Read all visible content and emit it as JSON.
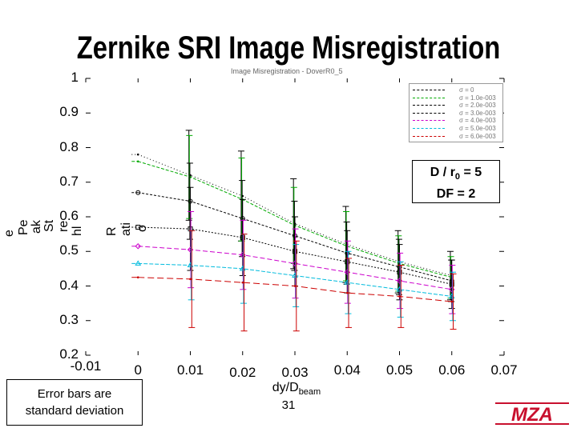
{
  "slide": {
    "title": "Zernike SRI Image Misregistration",
    "page_number": "31",
    "note_line1": "Error bars are",
    "note_line2": "standard deviation",
    "logo_text": "MZA",
    "colors": {
      "background": "#ffffff",
      "text": "#000000",
      "logo": "#c8102e"
    }
  },
  "chart_data": {
    "type": "line",
    "title": "",
    "subtitle": "Image Misregistration - DoverR0_5",
    "xlabel": "dy/D",
    "xlabel_sub": "beam",
    "ylabel_fragments": [
      "e",
      "Pe",
      "ak",
      "St",
      "re",
      "hl",
      "R",
      "ati",
      "o"
    ],
    "xlim": [
      -0.01,
      0.07
    ],
    "ylim": [
      0.2,
      1.0
    ],
    "x_ticks": [
      "-0.01",
      "0",
      "0.01",
      "0.02",
      "0.03",
      "0.04",
      "0.05",
      "0.06",
      "0.07"
    ],
    "y_ticks": [
      "0.2",
      "0.3",
      "0.4",
      "0.5",
      "0.6",
      "0.7",
      "0.8",
      "0.9",
      "1"
    ],
    "annotation": {
      "line1_pre": "D / r",
      "line1_sub": "0",
      "line1_post": " = 5",
      "line2": "DF = 2"
    },
    "legend_position": "top-right",
    "x": [
      0,
      0.01,
      0.02,
      0.03,
      0.04,
      0.05,
      0.06
    ],
    "series": [
      {
        "name": "σ = 0",
        "color": "#000000",
        "values": [
          0.78,
          0.72,
          0.66,
          0.58,
          0.52,
          0.47,
          0.43
        ],
        "err": [
          0.0,
          0.13,
          0.13,
          0.13,
          0.11,
          0.09,
          0.07
        ]
      },
      {
        "name": "σ = 1.0e-003",
        "color": "#00aa00",
        "values": [
          0.76,
          0.715,
          0.65,
          0.575,
          0.515,
          0.465,
          0.425
        ],
        "err": [
          0.0,
          0.12,
          0.12,
          0.11,
          0.1,
          0.08,
          0.06
        ]
      },
      {
        "name": "σ = 2.0e-003",
        "color": "#000000",
        "values": [
          0.67,
          0.645,
          0.595,
          0.545,
          0.495,
          0.455,
          0.415
        ],
        "err": [
          0.0,
          0.11,
          0.11,
          0.1,
          0.09,
          0.08,
          0.06
        ]
      },
      {
        "name": "σ = 3.0e-003",
        "color": "#000000",
        "values": [
          0.57,
          0.565,
          0.54,
          0.5,
          0.47,
          0.44,
          0.405
        ],
        "err": [
          0.0,
          0.12,
          0.11,
          0.1,
          0.09,
          0.08,
          0.07
        ]
      },
      {
        "name": "σ = 4.0e-003",
        "color": "#cc00cc",
        "values": [
          0.515,
          0.505,
          0.49,
          0.465,
          0.44,
          0.415,
          0.39
        ],
        "err": [
          0.0,
          0.11,
          0.1,
          0.1,
          0.09,
          0.08,
          0.07
        ]
      },
      {
        "name": "σ = 5.0e-003",
        "color": "#00bbdd",
        "values": [
          0.465,
          0.46,
          0.45,
          0.43,
          0.41,
          0.39,
          0.37
        ],
        "err": [
          0.0,
          0.1,
          0.1,
          0.09,
          0.09,
          0.08,
          0.07
        ]
      },
      {
        "name": "σ = 6.0e-003",
        "color": "#cc0000",
        "values": [
          0.425,
          0.42,
          0.41,
          0.4,
          0.38,
          0.37,
          0.355
        ],
        "err": [
          0.0,
          0.14,
          0.14,
          0.13,
          0.1,
          0.09,
          0.08
        ]
      }
    ]
  }
}
